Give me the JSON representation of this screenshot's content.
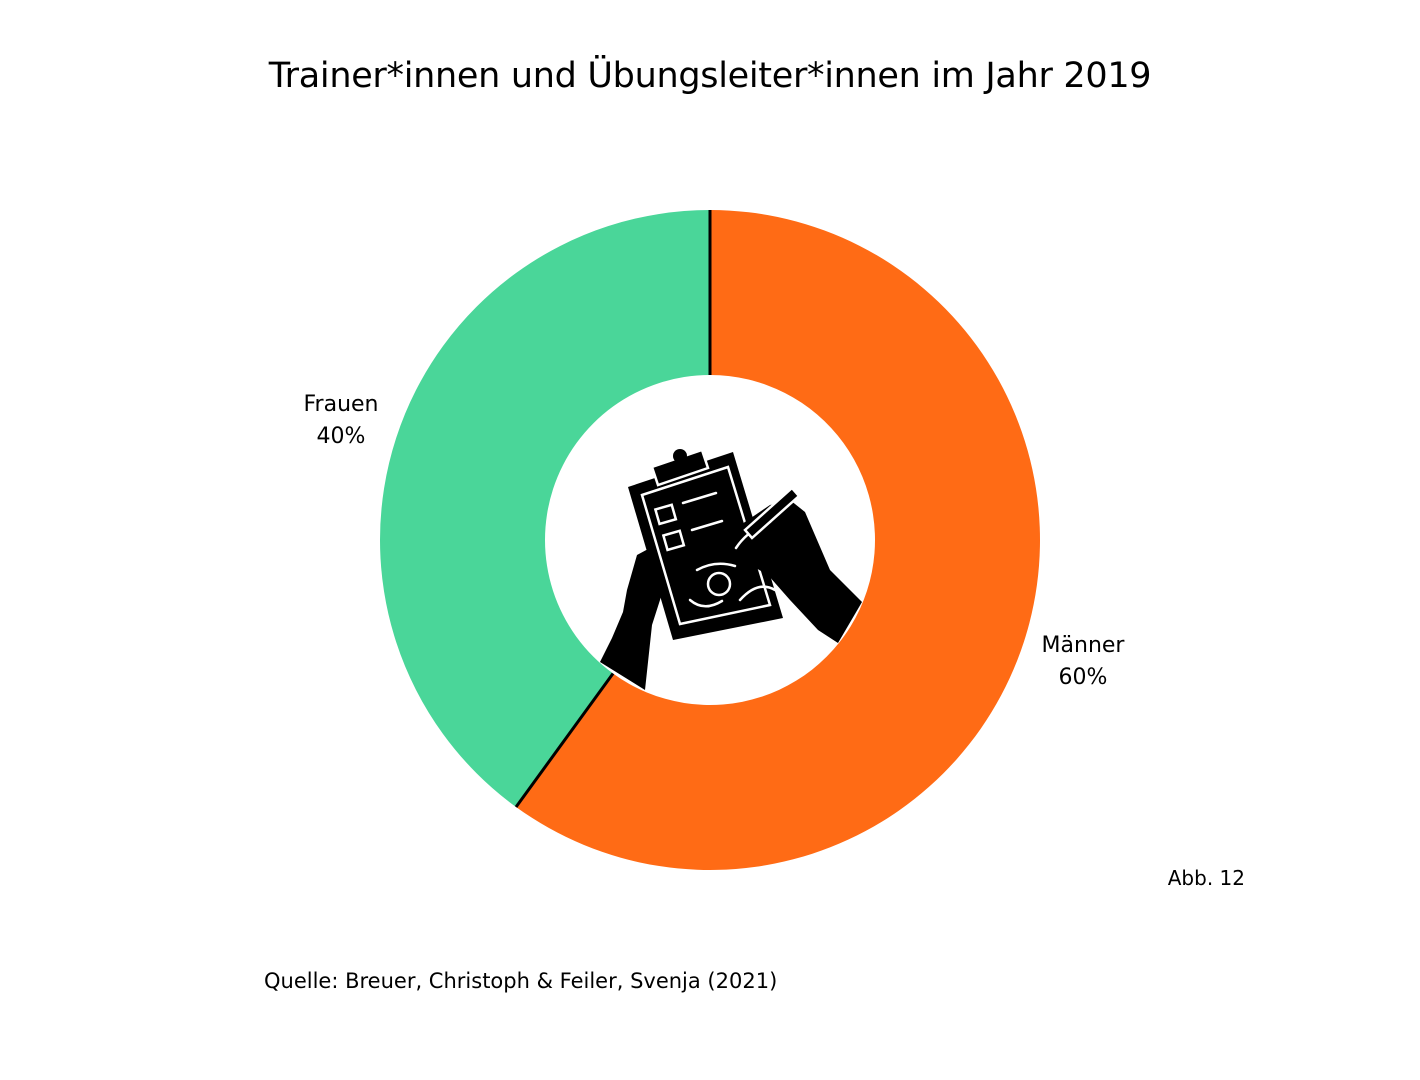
{
  "chart_data": {
    "type": "pie",
    "title": "Trainer*innen und Übungsleiter*innen im Jahr 2019",
    "slices": [
      {
        "name": "Männer",
        "value": 60,
        "value_label": "60%",
        "color": "#FF6B15"
      },
      {
        "name": "Frauen",
        "value": 40,
        "value_label": "40%",
        "color": "#4AD699"
      }
    ],
    "donut": true,
    "center_icon": "clipboard-checklist-hands-icon",
    "legend": "none"
  },
  "figure_number": "Abb. 12",
  "source": "Quelle: Breuer, Christoph & Feiler, Svenja (2021)"
}
